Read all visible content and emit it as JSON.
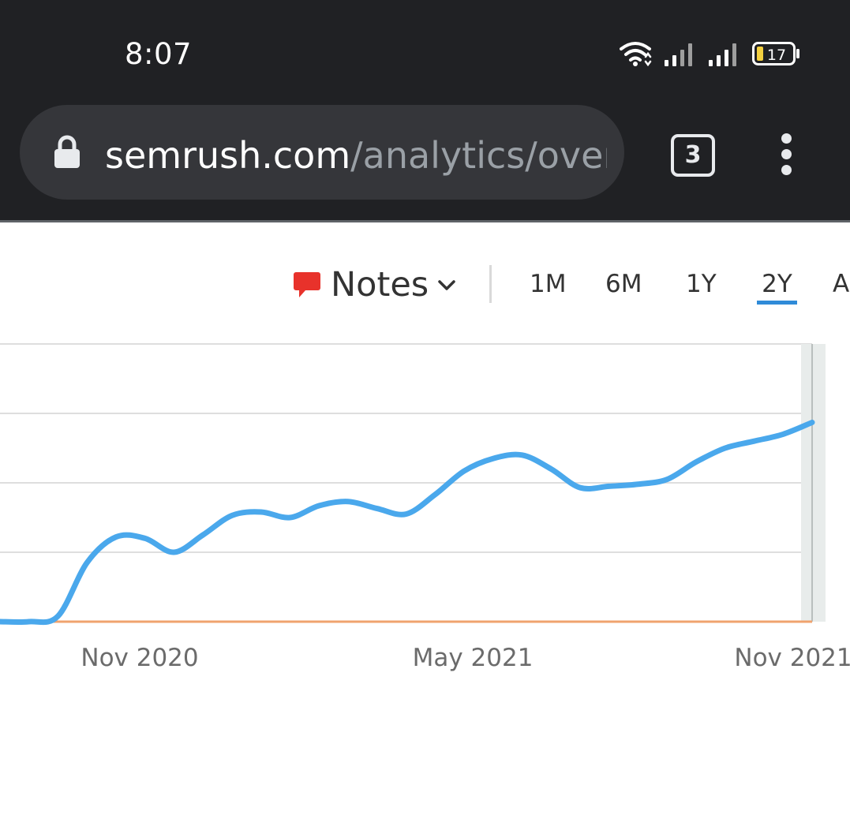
{
  "status_bar": {
    "time": "8:07",
    "battery": "17"
  },
  "browser": {
    "url_host": "semrush.com",
    "url_path": "/analytics/overv",
    "tab_count": "3"
  },
  "toolbar": {
    "notes_label": "Notes",
    "periods": [
      "1M",
      "6M",
      "1Y",
      "2Y",
      "A"
    ],
    "active_period": "2Y"
  },
  "colors": {
    "line": "#4aa8ec",
    "baseline": "#f0a36e",
    "active_underline": "#2f8bd8",
    "notes_icon": "#e8322b"
  },
  "chart_data": {
    "type": "line",
    "x_tick_labels": [
      "Nov 2020",
      "May 2021",
      "Nov 2021"
    ],
    "grid": true,
    "series": [
      {
        "values": [
          0,
          0,
          0.08,
          0.85,
          1.22,
          1.2,
          1.0,
          1.25,
          1.53,
          1.58,
          1.5,
          1.67,
          1.73,
          1.63,
          1.55,
          1.83,
          2.17,
          2.35,
          2.4,
          2.2,
          1.93,
          1.95,
          1.98,
          2.05,
          2.3,
          2.5,
          2.6,
          2.7,
          2.87
        ]
      }
    ]
  }
}
